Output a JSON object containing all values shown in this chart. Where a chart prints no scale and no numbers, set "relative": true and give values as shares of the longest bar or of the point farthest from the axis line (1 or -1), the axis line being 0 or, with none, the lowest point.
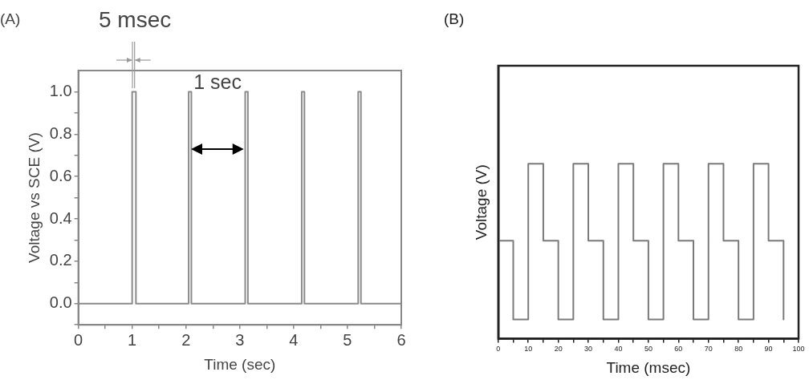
{
  "chart_data": [
    {
      "type": "step",
      "xlabel": "Time (sec)",
      "ylabel": "Voltage vs SCE (V)",
      "annotations": [
        "(A)",
        "5 msec",
        "1 sec"
      ],
      "x": [
        0,
        1,
        1.07,
        2.05,
        2.1,
        3.1,
        3.15,
        4.15,
        4.2,
        5.2,
        5.25,
        6
      ],
      "series": [
        {
          "color": "#8a8a8a",
          "values": [
            0,
            1,
            0,
            1,
            0,
            1,
            0,
            1,
            0,
            1,
            0,
            0
          ]
        }
      ],
      "xlim": [
        0,
        6
      ],
      "ylim": [
        -0.1,
        1.1
      ],
      "xticks": [
        0,
        {
          "value": 0.5,
          "label": null
        },
        1,
        {
          "value": 1.5,
          "label": null
        },
        2,
        {
          "value": 2.5,
          "label": null
        },
        3,
        {
          "value": 3.5,
          "label": null
        },
        4,
        {
          "value": 4.5,
          "label": null
        },
        5,
        {
          "value": 5.5,
          "label": null
        },
        6
      ],
      "yticks": [
        {
          "value": -0.1,
          "label": null
        },
        {
          "value": 0,
          "label": "0.0"
        },
        {
          "value": 0.1,
          "label": null
        },
        {
          "value": 0.2,
          "label": "0.2"
        },
        {
          "value": 0.3,
          "label": null
        },
        {
          "value": 0.4,
          "label": "0.4"
        },
        {
          "value": 0.5,
          "label": null
        },
        {
          "value": 0.6,
          "label": "0.6"
        },
        {
          "value": 0.7,
          "label": null
        },
        {
          "value": 0.8,
          "label": "0.8"
        },
        {
          "value": 0.9,
          "label": null
        },
        {
          "value": 1,
          "label": "1.0"
        }
      ],
      "grid": false,
      "legend": false,
      "marker": "none"
    },
    {
      "type": "step",
      "xlabel": "Time (msec)",
      "ylabel": "Voltage (V)",
      "annotations": [
        "(B)"
      ],
      "relative": true,
      "tick_labels": "x",
      "x": [
        0,
        5,
        10,
        15,
        20,
        25,
        30,
        35,
        40,
        45,
        50,
        55,
        60,
        65,
        70,
        75,
        80,
        85,
        90,
        95
      ],
      "series": [
        {
          "color": "#7a7a7a",
          "values": [
            0.56,
            0.11,
            1,
            0.56,
            0.11,
            1,
            0.56,
            0.11,
            1,
            0.56,
            0.11,
            1,
            0.56,
            0.11,
            1,
            0.56,
            0.11,
            1,
            0.56,
            0.11
          ]
        }
      ],
      "xlim": [
        0,
        100
      ],
      "xticks": [
        0,
        {
          "value": 5,
          "label": null
        },
        10,
        {
          "value": 15,
          "label": null
        },
        20,
        {
          "value": 25,
          "label": null
        },
        30,
        {
          "value": 35,
          "label": null
        },
        40,
        {
          "value": 45,
          "label": null
        },
        50,
        {
          "value": 55,
          "label": null
        },
        60,
        {
          "value": 65,
          "label": null
        },
        70,
        {
          "value": 75,
          "label": null
        },
        80,
        {
          "value": 85,
          "label": null
        },
        90,
        {
          "value": 95,
          "label": null
        },
        100
      ],
      "grid": false,
      "legend": false,
      "marker": "none"
    }
  ]
}
